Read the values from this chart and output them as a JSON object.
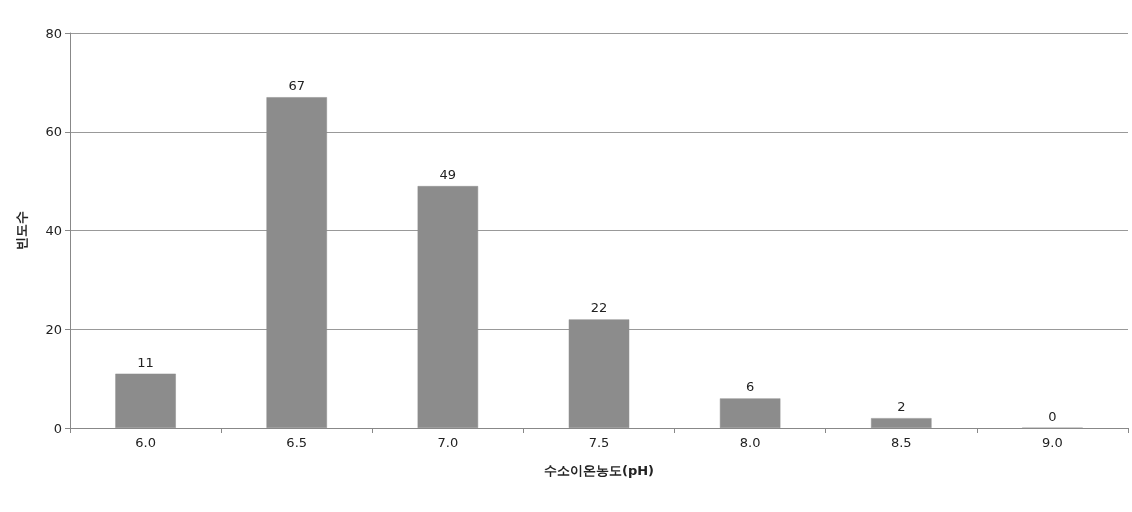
{
  "chart_data": {
    "type": "bar",
    "xlabel": "수소이온농도(pH)",
    "ylabel": "빈도수",
    "categories": [
      "6.0",
      "6.5",
      "7.0",
      "7.5",
      "8.0",
      "8.5",
      "9.0"
    ],
    "values": [
      11,
      67,
      49,
      22,
      6,
      2,
      0
    ],
    "color": "#8c8c8c",
    "ylim": [
      0,
      80
    ],
    "yticks": [
      0,
      20,
      40,
      60,
      80
    ],
    "grid": "y",
    "data_labels": true
  }
}
